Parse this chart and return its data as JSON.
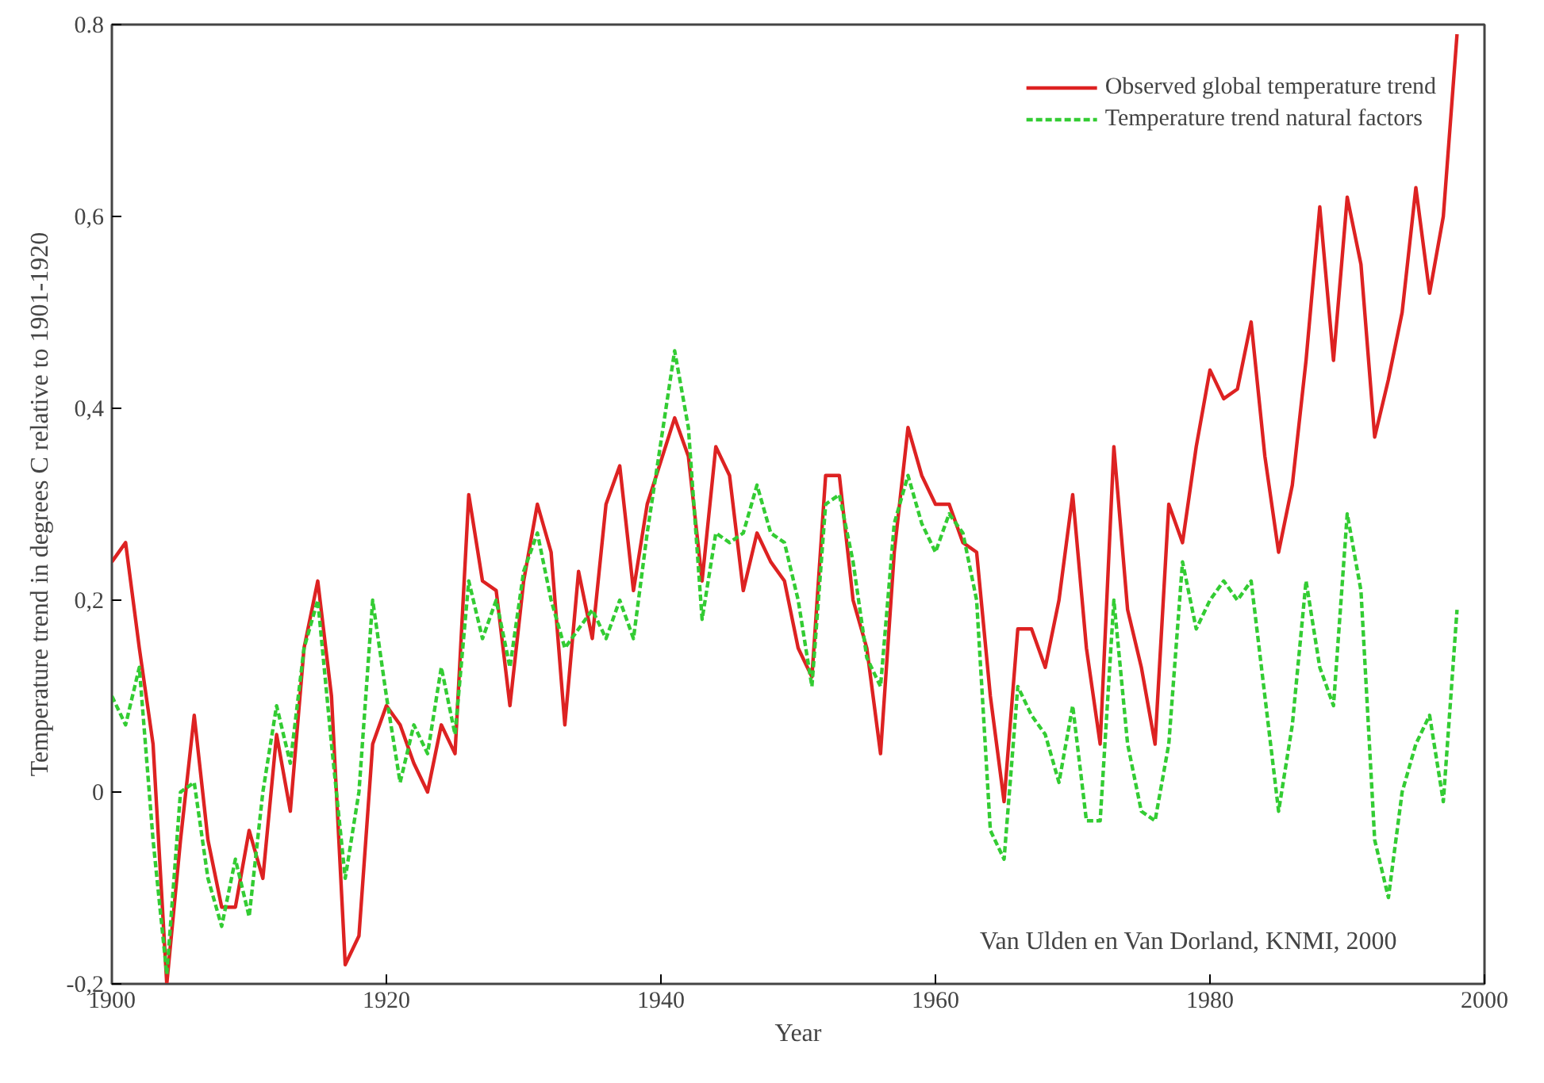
{
  "chart_data": {
    "type": "line",
    "xlabel": "Year",
    "ylabel": "Temperature trend in degrees C relative to 1901-1920",
    "xlim": [
      1900,
      2000
    ],
    "xticks": [
      1900,
      1920,
      1940,
      1960,
      1980,
      2000
    ],
    "ylim": [
      -0.2,
      0.8
    ],
    "yticks": [
      {
        "value": -0.2,
        "label": "-0,2"
      },
      0,
      {
        "value": 0.2,
        "label": "0,2"
      },
      {
        "value": 0.4,
        "label": "0,4"
      },
      {
        "value": 0.6,
        "label": "0,6"
      },
      {
        "value": 0.8,
        "label": "0.8"
      }
    ],
    "grid": false,
    "legend": "top right",
    "marker": "none",
    "annotations": [
      {
        "text": "Van Ulden en Van Dorland, KNMI, 2000"
      }
    ],
    "x": [
      1900,
      1901,
      1902,
      1903,
      1904,
      1905,
      1906,
      1907,
      1908,
      1909,
      1910,
      1911,
      1912,
      1913,
      1914,
      1915,
      1916,
      1917,
      1918,
      1919,
      1920,
      1921,
      1922,
      1923,
      1924,
      1925,
      1926,
      1927,
      1928,
      1929,
      1930,
      1931,
      1932,
      1933,
      1934,
      1935,
      1936,
      1937,
      1938,
      1939,
      1941,
      1942,
      1943,
      1944,
      1945,
      1946,
      1947,
      1948,
      1949,
      1950,
      1951,
      1952,
      1953,
      1954,
      1955,
      1956,
      1957,
      1958,
      1959,
      1960,
      1961,
      1962,
      1963,
      1964,
      1965,
      1966,
      1967,
      1968,
      1969,
      1970,
      1971,
      1972,
      1973,
      1974,
      1975,
      1976,
      1977,
      1978,
      1979,
      1980,
      1981,
      1982,
      1983,
      1984,
      1985,
      1986,
      1987,
      1988,
      1989,
      1990,
      1991,
      1992,
      1993,
      1994,
      1995,
      1996,
      1997,
      1998
    ],
    "series": [
      {
        "name": "Observed global temperature trend",
        "color": "#dd2222",
        "line_style": "solid",
        "values": [
          0.24,
          0.26,
          0.15,
          0.05,
          -0.2,
          -0.05,
          0.08,
          -0.05,
          -0.12,
          -0.12,
          -0.04,
          -0.09,
          0.06,
          -0.02,
          0.15,
          0.22,
          0.1,
          -0.18,
          -0.15,
          0.05,
          0.09,
          0.07,
          0.03,
          0.0,
          0.07,
          0.04,
          0.31,
          0.22,
          0.21,
          0.09,
          0.22,
          0.3,
          0.25,
          0.07,
          0.23,
          0.16,
          0.3,
          0.34,
          0.21,
          0.3,
          0.39,
          0.35,
          0.22,
          0.36,
          0.33,
          0.21,
          0.27,
          0.24,
          0.22,
          0.15,
          0.12,
          0.33,
          0.33,
          0.2,
          0.15,
          0.04,
          0.25,
          0.38,
          0.33,
          0.3,
          0.3,
          0.26,
          0.25,
          0.1,
          -0.01,
          0.17,
          0.17,
          0.13,
          0.2,
          0.31,
          0.15,
          0.05,
          0.36,
          0.19,
          0.13,
          0.05,
          0.3,
          0.26,
          0.36,
          0.44,
          0.41,
          0.42,
          0.49,
          0.35,
          0.25,
          0.32,
          0.45,
          0.61,
          0.45,
          0.62,
          0.55,
          0.37,
          0.43,
          0.5,
          0.63,
          0.52,
          0.6,
          0.79
        ]
      },
      {
        "name": "Temperature trend natural factors",
        "color": "#33cc33",
        "line_style": "dashed",
        "values": [
          0.1,
          0.07,
          0.13,
          -0.05,
          -0.19,
          0.0,
          0.01,
          -0.09,
          -0.14,
          -0.07,
          -0.13,
          0.0,
          0.09,
          0.03,
          0.15,
          0.2,
          0.05,
          -0.09,
          0.0,
          0.2,
          0.1,
          0.01,
          0.07,
          0.04,
          0.13,
          0.06,
          0.22,
          0.16,
          0.2,
          0.13,
          0.23,
          0.27,
          0.2,
          0.15,
          0.17,
          0.19,
          0.16,
          0.2,
          0.16,
          0.27,
          0.46,
          0.38,
          0.18,
          0.27,
          0.26,
          0.27,
          0.32,
          0.27,
          0.26,
          0.2,
          0.11,
          0.3,
          0.31,
          0.24,
          0.14,
          0.11,
          0.28,
          0.33,
          0.28,
          0.25,
          0.29,
          0.27,
          0.2,
          -0.04,
          -0.07,
          0.11,
          0.08,
          0.06,
          0.01,
          0.09,
          -0.03,
          -0.03,
          0.2,
          0.05,
          -0.02,
          -0.03,
          0.05,
          0.24,
          0.17,
          0.2,
          0.22,
          0.2,
          0.22,
          0.1,
          -0.02,
          0.07,
          0.22,
          0.13,
          0.09,
          0.29,
          0.21,
          -0.05,
          -0.11,
          0.0,
          0.05,
          0.08,
          -0.01,
          0.19
        ]
      }
    ]
  }
}
